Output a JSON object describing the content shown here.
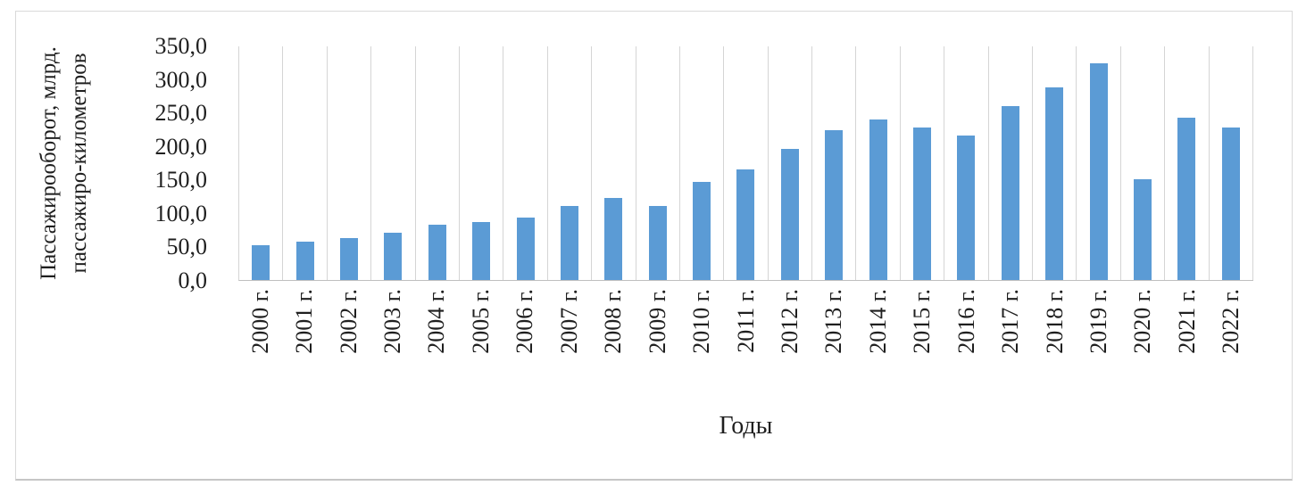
{
  "chart_data": {
    "type": "bar",
    "title": "",
    "categories": [
      "2000 г.",
      "2001 г.",
      "2002 г.",
      "2003 г.",
      "2004 г.",
      "2005 г.",
      "2006 г.",
      "2007 г.",
      "2008 г.",
      "2009 г.",
      "2010 г.",
      "2011 г.",
      "2012 г.",
      "2013 г.",
      "2014 г.",
      "2015 г.",
      "2016 г.",
      "2017 г.",
      "2018 г.",
      "2019 г.",
      "2020 г.",
      "2021 г.",
      "2022 г."
    ],
    "values": [
      52,
      57,
      63,
      70,
      83,
      86,
      93,
      110,
      122,
      111,
      147,
      165,
      195,
      223,
      240,
      227,
      216,
      259,
      288,
      323,
      151,
      242,
      227
    ],
    "xlabel": "Годы",
    "ylabel": "Пассажирооборот, млрд. пассажиро-километров",
    "ylabel_lines": [
      "Пассажирооборот, млрд.",
      "пассажиро-километров"
    ],
    "ylim": [
      0,
      350
    ],
    "ytick_step": 50,
    "yticks": [
      "350,0",
      "300,0",
      "250,0",
      "200,0",
      "150,0",
      "100,0",
      "50,0",
      "0,0"
    ],
    "grid": "vertical-only",
    "legend": "none",
    "bar_color": "#5b9bd5",
    "gridline_color": "#d5d5d5",
    "axis_line_color": "#bfbfbf",
    "text_color": "#1f1f1f"
  }
}
